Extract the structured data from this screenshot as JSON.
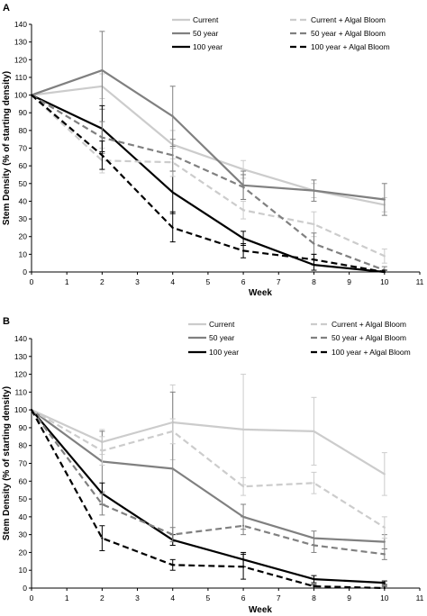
{
  "chart_data": [
    {
      "panel_label": "A",
      "type": "line",
      "xlabel": "Week",
      "ylabel": "Stem Density (% of starting density)",
      "xlim": [
        0,
        11
      ],
      "ylim": [
        0,
        140
      ],
      "x_ticks": [
        "0",
        "1",
        "2",
        "3",
        "4",
        "5",
        "6",
        "7",
        "8",
        "9",
        "10",
        "11"
      ],
      "y_ticks": [
        "0",
        "10",
        "20",
        "30",
        "40",
        "50",
        "60",
        "70",
        "80",
        "90",
        "100",
        "110",
        "120",
        "130",
        "140"
      ],
      "x": [
        0,
        2,
        4,
        6,
        8,
        10
      ],
      "legend_position": "top-right",
      "series": [
        {
          "name": "Current",
          "color": "#cccccc",
          "dash": "solid",
          "values": [
            100,
            105,
            72,
            58,
            46,
            38
          ],
          "err_hi": [
            100,
            112,
            80,
            63,
            50,
            42
          ],
          "err_lo": [
            100,
            98,
            64,
            53,
            42,
            34
          ]
        },
        {
          "name": "50 year",
          "color": "#808080",
          "dash": "solid",
          "values": [
            100,
            114,
            88,
            49,
            46,
            41
          ],
          "err_hi": [
            100,
            136,
            105,
            57,
            52,
            50
          ],
          "err_lo": [
            100,
            92,
            71,
            41,
            40,
            32
          ]
        },
        {
          "name": "100 year",
          "color": "#000000",
          "dash": "solid",
          "values": [
            100,
            81,
            45,
            19,
            4,
            0
          ],
          "err_hi": [
            100,
            94,
            57,
            23,
            7,
            1
          ],
          "err_lo": [
            100,
            68,
            33,
            15,
            1,
            0
          ]
        },
        {
          "name": "Current + Algal Bloom",
          "color": "#cccccc",
          "dash": "dash",
          "values": [
            100,
            63,
            62,
            35,
            27,
            9
          ],
          "err_hi": [
            100,
            70,
            70,
            40,
            34,
            13
          ],
          "err_lo": [
            100,
            56,
            54,
            30,
            20,
            5
          ]
        },
        {
          "name": "50 year + Algal Bloom",
          "color": "#808080",
          "dash": "dash",
          "values": [
            100,
            76,
            66,
            48,
            16,
            1
          ],
          "err_hi": [
            100,
            85,
            75,
            55,
            22,
            3
          ],
          "err_lo": [
            100,
            67,
            57,
            41,
            10,
            0
          ]
        },
        {
          "name": "100 year + Algal Bloom",
          "color": "#000000",
          "dash": "dash",
          "values": [
            100,
            66,
            25,
            12,
            7,
            0
          ],
          "err_hi": [
            100,
            74,
            34,
            16,
            10,
            1
          ],
          "err_lo": [
            100,
            58,
            17,
            8,
            4,
            0
          ]
        }
      ]
    },
    {
      "panel_label": "B",
      "type": "line",
      "xlabel": "Week",
      "ylabel": "Stem Density (% of starting density)",
      "xlim": [
        0,
        11
      ],
      "ylim": [
        0,
        140
      ],
      "x_ticks": [
        "0",
        "1",
        "2",
        "3",
        "4",
        "5",
        "6",
        "7",
        "8",
        "9",
        "10",
        "11"
      ],
      "y_ticks": [
        "0",
        "10",
        "20",
        "30",
        "40",
        "50",
        "60",
        "70",
        "80",
        "90",
        "100",
        "110",
        "120",
        "130",
        "140"
      ],
      "x": [
        0,
        2,
        4,
        6,
        8,
        10
      ],
      "legend_position": "top-right",
      "series": [
        {
          "name": "Current",
          "color": "#cccccc",
          "dash": "solid",
          "values": [
            100,
            82,
            93,
            89,
            88,
            64
          ],
          "err_hi": [
            100,
            89,
            114,
            120,
            107,
            76
          ],
          "err_lo": [
            100,
            75,
            72,
            58,
            69,
            52
          ]
        },
        {
          "name": "50 year",
          "color": "#808080",
          "dash": "solid",
          "values": [
            100,
            71,
            67,
            40,
            28,
            26
          ],
          "err_hi": [
            100,
            88,
            110,
            47,
            32,
            30
          ],
          "err_lo": [
            100,
            54,
            24,
            33,
            24,
            22
          ]
        },
        {
          "name": "100 year",
          "color": "#000000",
          "dash": "solid",
          "values": [
            100,
            53,
            27,
            16,
            5,
            3
          ],
          "err_hi": [
            100,
            59,
            30,
            20,
            7,
            4
          ],
          "err_lo": [
            100,
            47,
            24,
            12,
            3,
            2
          ]
        },
        {
          "name": "Current + Algal Bloom",
          "color": "#cccccc",
          "dash": "dash",
          "values": [
            100,
            77,
            88,
            57,
            59,
            34
          ],
          "err_hi": [
            100,
            85,
            95,
            62,
            65,
            40
          ],
          "err_lo": [
            100,
            69,
            81,
            52,
            53,
            28
          ]
        },
        {
          "name": "50 year + Algal Bloom",
          "color": "#808080",
          "dash": "dash",
          "values": [
            100,
            47,
            30,
            35,
            24,
            19
          ],
          "err_hi": [
            100,
            53,
            34,
            40,
            28,
            22
          ],
          "err_lo": [
            100,
            41,
            26,
            30,
            20,
            16
          ]
        },
        {
          "name": "100 year + Algal Bloom",
          "color": "#000000",
          "dash": "dash",
          "values": [
            100,
            28,
            13,
            12,
            1,
            0
          ],
          "err_hi": [
            100,
            35,
            16,
            19,
            2,
            1
          ],
          "err_lo": [
            100,
            21,
            10,
            5,
            0,
            0
          ]
        }
      ]
    }
  ]
}
